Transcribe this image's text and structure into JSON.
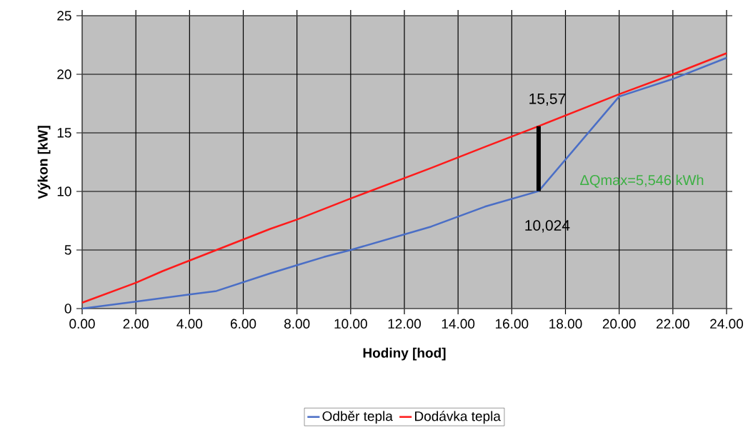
{
  "chart_data": {
    "type": "line",
    "xlabel": "Hodiny [hod]",
    "ylabel": "Výkon [kW]",
    "xlim": [
      0,
      24
    ],
    "ylim": [
      0,
      25
    ],
    "xticks": [
      {
        "value": 0,
        "label": "0.00"
      },
      {
        "value": 2,
        "label": "2.00"
      },
      {
        "value": 4,
        "label": "4.00"
      },
      {
        "value": 6,
        "label": "6.00"
      },
      {
        "value": 8,
        "label": "8.00"
      },
      {
        "value": 10,
        "label": "10.00"
      },
      {
        "value": 12,
        "label": "12.00"
      },
      {
        "value": 14,
        "label": "14.00"
      },
      {
        "value": 16,
        "label": "16.00"
      },
      {
        "value": 18,
        "label": "18.00"
      },
      {
        "value": 20,
        "label": "20.00"
      },
      {
        "value": 22,
        "label": "22.00"
      },
      {
        "value": 24,
        "label": "24.00"
      }
    ],
    "yticks": [
      0,
      5,
      10,
      15,
      20,
      25
    ],
    "x": [
      0,
      2,
      3,
      4,
      5,
      7,
      8,
      9,
      10,
      13,
      15,
      17,
      20,
      22,
      24
    ],
    "series": [
      {
        "name": "Odběr tepla",
        "color": "#4a6ec6",
        "values": [
          0,
          0.6,
          0.9,
          1.2,
          1.5,
          3,
          3.7,
          4.4,
          5,
          7,
          8.7,
          10.024,
          18.1,
          19.6,
          21.4
        ]
      },
      {
        "name": "Dodávka tepla",
        "color": "#ff1a1a",
        "values": [
          0.5,
          2.2,
          3.2,
          4.1,
          5,
          6.8,
          7.6,
          8.5,
          9.4,
          12,
          13.8,
          15.57,
          18.3,
          20,
          21.8
        ]
      },
      {
        "type": "line",
        "color": "#000000",
        "x": [
          17,
          17
        ],
        "values": [
          10.024,
          15.57
        ]
      }
    ],
    "annotations": [
      {
        "text": "15,57",
        "x": 17,
        "y": 15.57
      },
      {
        "text": "10,024",
        "x": 17,
        "y": 10.024
      },
      "ΔQmax=5,546 kWh"
    ],
    "grid": true,
    "legend": "bottom",
    "marker": "none",
    "line_style": "solid"
  }
}
